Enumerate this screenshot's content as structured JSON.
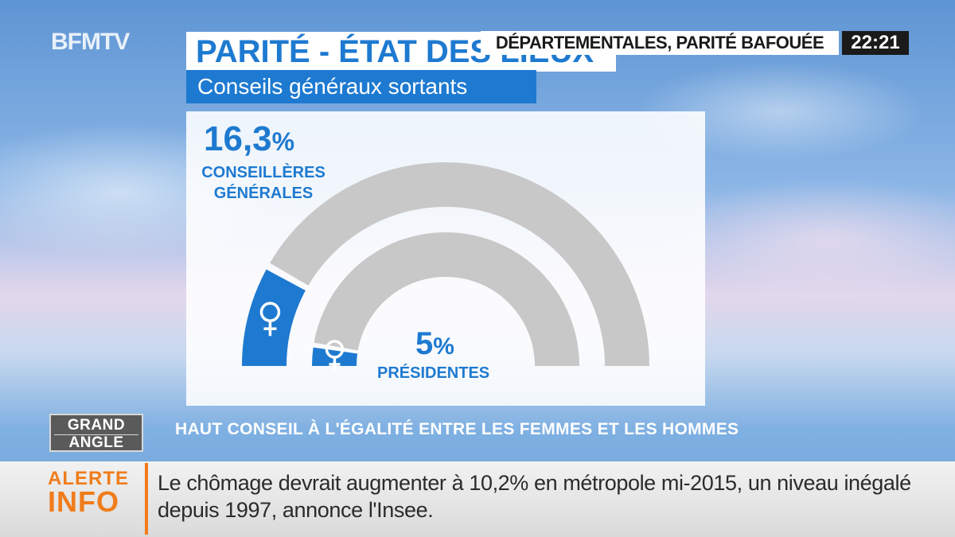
{
  "channel": {
    "logo": "BFMTV"
  },
  "header": {
    "title": "PARITÉ - ÉTAT DES LIEUX",
    "subtitle": "Conseils généraux sortants"
  },
  "ticker": {
    "headline": "DÉPARTEMENTALES, PARITÉ BAFOUÉE",
    "time": "22:21"
  },
  "chart_data": {
    "type": "pie",
    "title": "PARITÉ - ÉTAT DES LIEUX",
    "subtitle": "Conseils généraux sortants",
    "series": [
      {
        "name": "CONSEILLÈRES GÉNÉRALES",
        "value": 16.3,
        "unit": "%",
        "display_value": "16,3",
        "ring": "outer"
      },
      {
        "name": "PRÉSIDENTES",
        "value": 5,
        "unit": "%",
        "display_value": "5",
        "ring": "inner"
      }
    ],
    "shape": "semicircle donut",
    "colors": {
      "share": "#1e7ad0",
      "remainder": "#c8c8c8"
    },
    "icon": "female-symbol-icon"
  },
  "labels": {
    "outer_pct": "16,3",
    "outer_unit": "%",
    "outer_name_line1": "CONSEILLÈRES",
    "outer_name_line2": "GÉNÉRALES",
    "inner_pct": "5",
    "inner_unit": "%",
    "inner_name": "PRÉSIDENTES"
  },
  "source": "HAUT CONSEIL À L'ÉGALITÉ ENTRE LES FEMMES ET LES HOMMES",
  "program": {
    "line1": "GRAND",
    "line2": "ANGLE"
  },
  "alert": {
    "label_line1": "ALERTE",
    "label_line2": "INFO",
    "text": "Le chômage devrait augmenter à 10,2% en métropole mi-2015, un niveau inégalé depuis 1997, annonce l'Insee."
  }
}
